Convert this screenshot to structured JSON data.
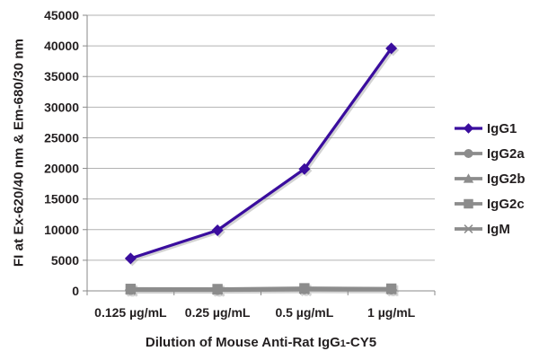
{
  "chart_data": {
    "type": "line",
    "title": "",
    "ylabel": "FI at Ex-620/40 nm & Em-680/30 nm",
    "xlabel": {
      "prefix": "Dilution of Mouse Anti-Rat IgG",
      "sub": "1",
      "suffix": "-CY5"
    },
    "categories": [
      "0.125 µg/mL",
      "0.25 µg/mL",
      "0.5 µg/mL",
      "1 µg/mL"
    ],
    "ylim": [
      0,
      45000
    ],
    "yticks": [
      0,
      5000,
      10000,
      15000,
      20000,
      25000,
      30000,
      35000,
      40000,
      45000
    ],
    "grid": true,
    "legend_position": "right",
    "series": [
      {
        "name": "IgG1",
        "marker": "diamond",
        "color": "#3A0D9E",
        "line_width": 3.2,
        "values": [
          5300,
          9900,
          19900,
          39600
        ]
      },
      {
        "name": "IgG2a",
        "marker": "circle",
        "color": "#8C8C8C",
        "line_width": 3.8,
        "values": [
          150,
          140,
          250,
          210
        ]
      },
      {
        "name": "IgG2b",
        "marker": "triangle",
        "color": "#8C8C8C",
        "line_width": 3.8,
        "values": [
          190,
          170,
          290,
          240
        ]
      },
      {
        "name": "IgG2c",
        "marker": "square",
        "color": "#8C8C8C",
        "line_width": 3.8,
        "values": [
          330,
          300,
          430,
          370
        ]
      },
      {
        "name": "IgM",
        "marker": "asterisk",
        "color": "#8C8C8C",
        "line_width": 3.8,
        "values": [
          120,
          110,
          190,
          160
        ]
      }
    ],
    "draw_order": [
      "IgG2a",
      "IgG2b",
      "IgM",
      "IgG2c",
      "IgG1"
    ]
  },
  "style": {
    "background": "#FFFFFF",
    "grid_color": "#B2B2B2",
    "axis_color": "#8A8A8A",
    "text_color": "#231F20"
  }
}
